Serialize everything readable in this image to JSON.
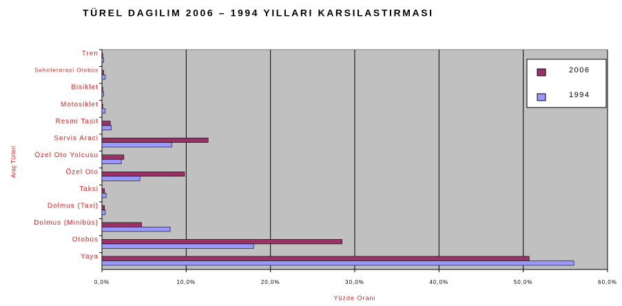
{
  "chart_data": {
    "type": "bar",
    "orientation": "horizontal",
    "title": "TÜREL DAGILIM 2006 – 1994 YILLARI KARSILASTIRMASI",
    "x_label": "Yüzde Orani",
    "y_label": "Araç Türleri",
    "categories": [
      "Tren",
      "Sehirlerarasi Otobüs",
      "Bisiklet",
      "Motosiklet",
      "Resmi Tasit",
      "Servis Araci",
      "Özel Oto Yolcusu",
      "Özel Oto",
      "Taksi",
      "Dolmus (Taxi)",
      "Dolmus (Minibüs)",
      "Otobüs",
      "Yaya"
    ],
    "series": [
      {
        "name": "2006",
        "color": "#993366",
        "values": [
          0.1,
          0.2,
          0.1,
          0.1,
          1.0,
          12.6,
          2.6,
          9.8,
          0.3,
          0.3,
          4.7,
          28.5,
          50.7
        ]
      },
      {
        "name": "1994",
        "color": "#9999ff",
        "values": [
          0.2,
          0.4,
          0.2,
          0.4,
          1.1,
          8.3,
          2.3,
          4.5,
          0.5,
          0.4,
          8.1,
          18.0,
          56.0
        ]
      }
    ],
    "xlim": [
      0,
      60
    ],
    "xticks": [
      {
        "value": 0,
        "label": "0,0%"
      },
      {
        "value": 10,
        "label": "10,0%"
      },
      {
        "value": 20,
        "label": "20,0%"
      },
      {
        "value": 30,
        "label": "30,0%"
      },
      {
        "value": 40,
        "label": "40,0%"
      },
      {
        "value": 50,
        "label": "50,0%"
      },
      {
        "value": 60,
        "label": "60,0%"
      }
    ],
    "grid": true,
    "legend": "upper right",
    "background": "#c0c0c0"
  }
}
